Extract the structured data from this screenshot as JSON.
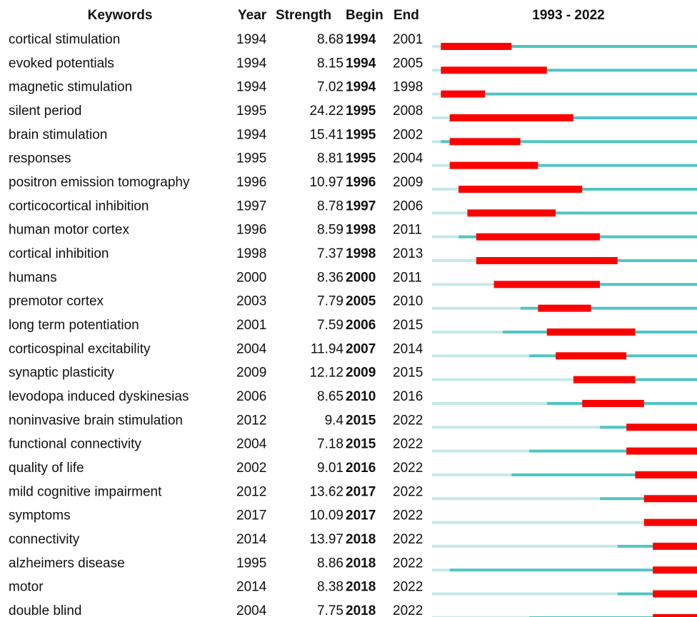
{
  "chart_data": {
    "type": "burst",
    "columns": [
      "Keywords",
      "Year",
      "Strength",
      "Begin",
      "End"
    ],
    "title": "1993 - 2022",
    "xlim": [
      1993,
      2022
    ],
    "keywords": [
      "cortical stimulation",
      "evoked potentials",
      "magnetic stimulation",
      "silent period",
      "brain stimulation",
      "responses",
      "positron emission tomography",
      "corticocortical inhibition",
      "human motor cortex",
      "cortical inhibition",
      "humans",
      "premotor cortex",
      "long term potentiation",
      "corticospinal excitability",
      "synaptic plasticity",
      "levodopa induced dyskinesias",
      "noninvasive brain stimulation",
      "functional connectivity",
      "quality of life",
      "mild cognitive impairment",
      "symptoms",
      "connectivity",
      "alzheimers disease",
      "motor",
      "double blind"
    ],
    "year": [
      1994,
      1994,
      1994,
      1995,
      1994,
      1995,
      1996,
      1997,
      1996,
      1998,
      2000,
      2003,
      2001,
      2004,
      2009,
      2006,
      2012,
      2004,
      2002,
      2012,
      2017,
      2014,
      1995,
      2014,
      2004
    ],
    "strength": [
      8.68,
      8.15,
      7.02,
      24.22,
      15.41,
      8.81,
      10.97,
      8.78,
      8.59,
      7.37,
      8.36,
      7.79,
      7.59,
      11.94,
      12.12,
      8.65,
      9.4,
      7.18,
      9.01,
      13.62,
      10.09,
      13.97,
      8.86,
      8.38,
      7.75
    ],
    "begin": [
      1994,
      1994,
      1994,
      1995,
      1995,
      1995,
      1996,
      1997,
      1998,
      1998,
      2000,
      2005,
      2006,
      2007,
      2009,
      2010,
      2015,
      2015,
      2016,
      2017,
      2017,
      2018,
      2018,
      2018,
      2018
    ],
    "end": [
      2001,
      2005,
      1998,
      2008,
      2002,
      2004,
      2009,
      2006,
      2011,
      2013,
      2011,
      2010,
      2015,
      2014,
      2015,
      2016,
      2022,
      2022,
      2022,
      2022,
      2022,
      2022,
      2022,
      2022,
      2022
    ],
    "colors": {
      "before": "#c5e8e8",
      "active": "#4fc4c4",
      "burst": "#ff0000"
    }
  }
}
